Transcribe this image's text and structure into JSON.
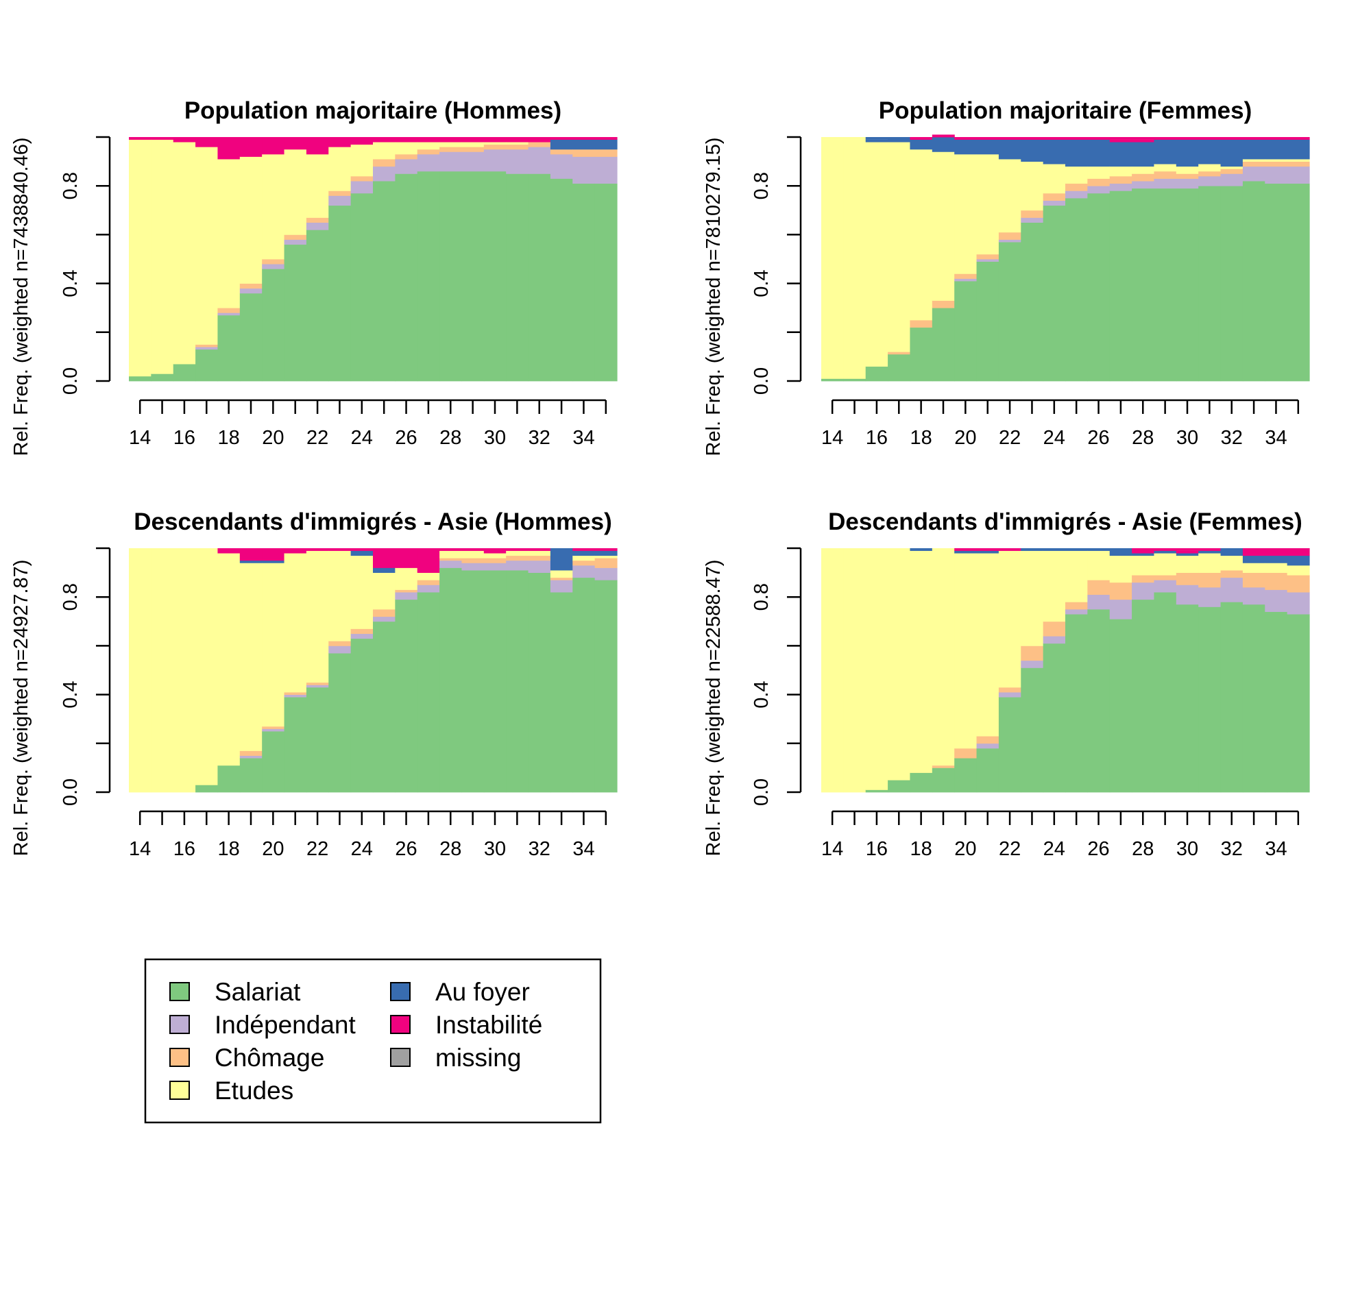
{
  "legend": {
    "items": [
      {
        "label": "Salariat",
        "color": "#7FC97F"
      },
      {
        "label": "Indépendant",
        "color": "#BEAED4"
      },
      {
        "label": "Chômage",
        "color": "#FDC086"
      },
      {
        "label": "Etudes",
        "color": "#FFFF99"
      },
      {
        "label": "Au foyer",
        "color": "#386CB0"
      },
      {
        "label": "Instabilité",
        "color": "#F0027F"
      },
      {
        "label": "missing",
        "color": "#A0A0A0"
      }
    ]
  },
  "chart_data": [
    {
      "type": "bar",
      "stacked": true,
      "title": "Population majoritaire (Hommes)",
      "ylabel": "Rel. Freq. (weighted n=7438840.46)",
      "ylim": [
        0,
        1
      ],
      "yticks": [
        "0.0",
        "0.4",
        "0.8"
      ],
      "xtick_labels": [
        "14",
        "16",
        "18",
        "20",
        "22",
        "24",
        "26",
        "28",
        "30",
        "32",
        "34"
      ],
      "categories": [
        14,
        15,
        16,
        17,
        18,
        19,
        20,
        21,
        22,
        23,
        24,
        25,
        26,
        27,
        28,
        29,
        30,
        31,
        32,
        33,
        34,
        35
      ],
      "series": [
        {
          "name": "Salariat",
          "values": [
            0.02,
            0.03,
            0.07,
            0.13,
            0.27,
            0.36,
            0.46,
            0.56,
            0.62,
            0.72,
            0.77,
            0.82,
            0.85,
            0.86,
            0.86,
            0.86,
            0.86,
            0.85,
            0.85,
            0.83,
            0.81,
            0.81
          ]
        },
        {
          "name": "Indépendant",
          "values": [
            0.0,
            0.0,
            0.0,
            0.01,
            0.01,
            0.02,
            0.02,
            0.02,
            0.03,
            0.04,
            0.05,
            0.06,
            0.06,
            0.07,
            0.08,
            0.08,
            0.09,
            0.1,
            0.11,
            0.1,
            0.11,
            0.11
          ]
        },
        {
          "name": "Chômage",
          "values": [
            0.0,
            0.0,
            0.0,
            0.01,
            0.02,
            0.02,
            0.02,
            0.02,
            0.02,
            0.02,
            0.02,
            0.03,
            0.02,
            0.02,
            0.02,
            0.02,
            0.02,
            0.02,
            0.02,
            0.02,
            0.03,
            0.03
          ]
        },
        {
          "name": "Etudes",
          "values": [
            0.97,
            0.96,
            0.91,
            0.81,
            0.61,
            0.52,
            0.43,
            0.35,
            0.26,
            0.18,
            0.13,
            0.07,
            0.05,
            0.03,
            0.02,
            0.02,
            0.01,
            0.01,
            0.0,
            0.0,
            0.0,
            0.0
          ]
        },
        {
          "name": "Au foyer",
          "values": [
            0.0,
            0.0,
            0.0,
            0.0,
            0.0,
            0.0,
            0.0,
            0.0,
            0.0,
            0.0,
            0.0,
            0.0,
            0.0,
            0.0,
            0.0,
            0.0,
            0.0,
            0.0,
            0.0,
            0.04,
            0.04,
            0.04
          ]
        },
        {
          "name": "Instabilité",
          "values": [
            0.01,
            0.01,
            0.02,
            0.04,
            0.09,
            0.08,
            0.07,
            0.05,
            0.07,
            0.04,
            0.03,
            0.02,
            0.02,
            0.02,
            0.02,
            0.02,
            0.02,
            0.02,
            0.02,
            0.01,
            0.01,
            0.01
          ]
        }
      ]
    },
    {
      "type": "bar",
      "stacked": true,
      "title": "Population majoritaire (Femmes)",
      "ylabel": "Rel. Freq. (weighted n=7810279.15)",
      "ylim": [
        0,
        1
      ],
      "yticks": [
        "0.0",
        "0.4",
        "0.8"
      ],
      "xtick_labels": [
        "14",
        "16",
        "18",
        "20",
        "22",
        "24",
        "26",
        "28",
        "30",
        "32",
        "34"
      ],
      "categories": [
        14,
        15,
        16,
        17,
        18,
        19,
        20,
        21,
        22,
        23,
        24,
        25,
        26,
        27,
        28,
        29,
        30,
        31,
        32,
        33,
        34,
        35
      ],
      "series": [
        {
          "name": "Salariat",
          "values": [
            0.01,
            0.01,
            0.06,
            0.11,
            0.22,
            0.3,
            0.41,
            0.49,
            0.57,
            0.65,
            0.72,
            0.75,
            0.77,
            0.78,
            0.79,
            0.79,
            0.79,
            0.8,
            0.8,
            0.82,
            0.81,
            0.81
          ]
        },
        {
          "name": "Indépendant",
          "values": [
            0.0,
            0.0,
            0.0,
            0.0,
            0.0,
            0.0,
            0.01,
            0.01,
            0.01,
            0.02,
            0.02,
            0.03,
            0.03,
            0.03,
            0.03,
            0.04,
            0.04,
            0.04,
            0.05,
            0.06,
            0.07,
            0.07
          ]
        },
        {
          "name": "Chômage",
          "values": [
            0.0,
            0.0,
            0.0,
            0.01,
            0.03,
            0.03,
            0.02,
            0.02,
            0.03,
            0.03,
            0.03,
            0.03,
            0.03,
            0.03,
            0.03,
            0.03,
            0.02,
            0.02,
            0.02,
            0.02,
            0.02,
            0.02
          ]
        },
        {
          "name": "Etudes",
          "values": [
            0.98,
            0.98,
            0.92,
            0.86,
            0.7,
            0.61,
            0.49,
            0.41,
            0.3,
            0.2,
            0.12,
            0.07,
            0.05,
            0.04,
            0.03,
            0.03,
            0.03,
            0.03,
            0.01,
            0.01,
            0.01,
            0.01
          ]
        },
        {
          "name": "Au foyer",
          "values": [
            0.0,
            0.0,
            0.01,
            0.02,
            0.04,
            0.06,
            0.06,
            0.06,
            0.08,
            0.09,
            0.1,
            0.11,
            0.11,
            0.1,
            0.1,
            0.1,
            0.11,
            0.1,
            0.11,
            0.08,
            0.08,
            0.08
          ]
        },
        {
          "name": "Instabilité",
          "values": [
            0.0,
            0.0,
            0.0,
            0.0,
            0.01,
            0.01,
            0.01,
            0.01,
            0.01,
            0.01,
            0.01,
            0.01,
            0.01,
            0.01,
            0.01,
            0.01,
            0.01,
            0.01,
            0.01,
            0.01,
            0.01,
            0.01
          ]
        }
      ]
    },
    {
      "type": "bar",
      "stacked": true,
      "title": "Descendants d'immigrés - Asie (Hommes)",
      "ylabel": "Rel. Freq. (weighted n=24927.87)",
      "ylim": [
        0,
        1
      ],
      "yticks": [
        "0.0",
        "0.4",
        "0.8"
      ],
      "xtick_labels": [
        "14",
        "16",
        "18",
        "20",
        "22",
        "24",
        "26",
        "28",
        "30",
        "32",
        "34"
      ],
      "categories": [
        14,
        15,
        16,
        17,
        18,
        19,
        20,
        21,
        22,
        23,
        24,
        25,
        26,
        27,
        28,
        29,
        30,
        31,
        32,
        33,
        34,
        35
      ],
      "series": [
        {
          "name": "Salariat",
          "values": [
            0.0,
            0.0,
            0.0,
            0.03,
            0.11,
            0.14,
            0.25,
            0.39,
            0.43,
            0.57,
            0.63,
            0.7,
            0.79,
            0.82,
            0.92,
            0.91,
            0.91,
            0.91,
            0.9,
            0.82,
            0.88,
            0.87
          ]
        },
        {
          "name": "Indépendant",
          "values": [
            0.0,
            0.0,
            0.0,
            0.0,
            0.0,
            0.01,
            0.01,
            0.01,
            0.01,
            0.03,
            0.02,
            0.02,
            0.03,
            0.03,
            0.03,
            0.03,
            0.03,
            0.04,
            0.05,
            0.05,
            0.05,
            0.05
          ]
        },
        {
          "name": "Chômage",
          "values": [
            0.0,
            0.0,
            0.0,
            0.0,
            0.0,
            0.02,
            0.01,
            0.01,
            0.01,
            0.02,
            0.02,
            0.03,
            0.01,
            0.02,
            0.01,
            0.02,
            0.02,
            0.02,
            0.02,
            0.01,
            0.02,
            0.04
          ]
        },
        {
          "name": "Etudes",
          "values": [
            1.0,
            1.0,
            1.0,
            0.97,
            0.87,
            0.77,
            0.67,
            0.57,
            0.54,
            0.37,
            0.3,
            0.15,
            0.09,
            0.03,
            0.03,
            0.03,
            0.02,
            0.02,
            0.02,
            0.03,
            0.02,
            0.01
          ]
        },
        {
          "name": "Au foyer",
          "values": [
            0.0,
            0.0,
            0.0,
            0.0,
            0.0,
            0.01,
            0.01,
            0.0,
            0.0,
            0.0,
            0.02,
            0.02,
            0.0,
            0.0,
            0.0,
            0.0,
            0.0,
            0.0,
            0.0,
            0.09,
            0.02,
            0.02
          ]
        },
        {
          "name": "Instabilité",
          "values": [
            0.0,
            0.0,
            0.0,
            0.0,
            0.02,
            0.05,
            0.05,
            0.02,
            0.01,
            0.01,
            0.01,
            0.08,
            0.08,
            0.1,
            0.01,
            0.01,
            0.02,
            0.01,
            0.01,
            0.0,
            0.01,
            0.01
          ]
        }
      ]
    },
    {
      "type": "bar",
      "stacked": true,
      "title": "Descendants d'immigrés - Asie (Femmes)",
      "ylabel": "Rel. Freq. (weighted n=22588.47)",
      "ylim": [
        0,
        1
      ],
      "yticks": [
        "0.0",
        "0.4",
        "0.8"
      ],
      "xtick_labels": [
        "14",
        "16",
        "18",
        "20",
        "22",
        "24",
        "26",
        "28",
        "30",
        "32",
        "34"
      ],
      "categories": [
        14,
        15,
        16,
        17,
        18,
        19,
        20,
        21,
        22,
        23,
        24,
        25,
        26,
        27,
        28,
        29,
        30,
        31,
        32,
        33,
        34,
        35
      ],
      "series": [
        {
          "name": "Salariat",
          "values": [
            0.0,
            0.0,
            0.01,
            0.05,
            0.08,
            0.1,
            0.14,
            0.18,
            0.39,
            0.51,
            0.61,
            0.73,
            0.75,
            0.71,
            0.79,
            0.82,
            0.77,
            0.76,
            0.78,
            0.77,
            0.74,
            0.73
          ]
        },
        {
          "name": "Indépendant",
          "values": [
            0.0,
            0.0,
            0.0,
            0.0,
            0.0,
            0.0,
            0.0,
            0.02,
            0.02,
            0.03,
            0.03,
            0.02,
            0.06,
            0.08,
            0.07,
            0.05,
            0.08,
            0.08,
            0.1,
            0.07,
            0.09,
            0.09
          ]
        },
        {
          "name": "Chômage",
          "values": [
            0.0,
            0.0,
            0.0,
            0.0,
            0.0,
            0.01,
            0.04,
            0.03,
            0.02,
            0.06,
            0.06,
            0.03,
            0.06,
            0.07,
            0.03,
            0.02,
            0.05,
            0.06,
            0.03,
            0.06,
            0.07,
            0.07
          ]
        },
        {
          "name": "Etudes",
          "values": [
            1.0,
            1.0,
            0.99,
            0.95,
            0.91,
            0.89,
            0.8,
            0.75,
            0.56,
            0.39,
            0.29,
            0.21,
            0.12,
            0.11,
            0.08,
            0.09,
            0.07,
            0.08,
            0.06,
            0.04,
            0.04,
            0.04
          ]
        },
        {
          "name": "Au foyer",
          "values": [
            0.0,
            0.0,
            0.0,
            0.0,
            0.01,
            0.0,
            0.01,
            0.01,
            0.0,
            0.01,
            0.01,
            0.01,
            0.01,
            0.03,
            0.01,
            0.01,
            0.01,
            0.01,
            0.03,
            0.03,
            0.03,
            0.04
          ]
        },
        {
          "name": "Instabilité",
          "values": [
            0.0,
            0.0,
            0.0,
            0.0,
            0.0,
            0.0,
            0.01,
            0.01,
            0.01,
            0.0,
            0.0,
            0.0,
            0.0,
            0.0,
            0.02,
            0.01,
            0.01,
            0.01,
            0.0,
            0.03,
            0.03,
            0.03
          ]
        }
      ]
    }
  ]
}
